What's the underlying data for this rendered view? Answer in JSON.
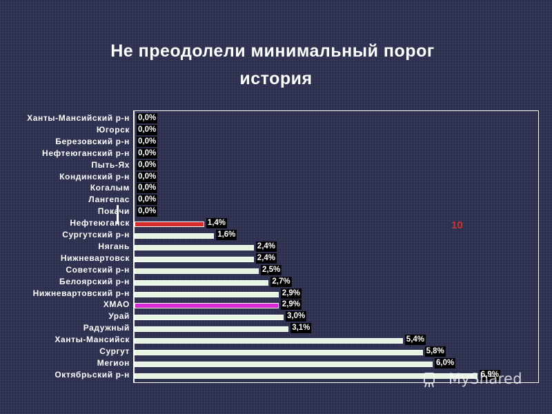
{
  "slide": {
    "title_line1": "Не преодолели минимальный порог",
    "title_line2": "история",
    "annotation": "10",
    "watermark": "MyShared"
  },
  "colors": {
    "background": "#2c2f4e",
    "default_bar": "#e6f5e2",
    "highlight_red": "#d72c2c",
    "highlight_magenta": "#d62ad6",
    "annotation": "#d43030"
  },
  "chart_data": {
    "type": "bar",
    "orientation": "horizontal",
    "categories": [
      "Ханты-Мансийский р-н",
      "Югорск",
      "Березовский р-н",
      "Нефтеюганский р-н",
      "Пыть-Ях",
      "Кондинский р-н",
      "Когалым",
      "Лангепас",
      "Покачи",
      "Нефтеюганск",
      "Сургутский р-н",
      "Нягань",
      "Нижневартовск",
      "Советский р-н",
      "Белоярский р-н",
      "Нижневартовский р-н",
      "ХМАО",
      "Урай",
      "Радужный",
      "Ханты-Мансийск",
      "Сургут",
      "Мегион",
      "Октябрьский р-н"
    ],
    "values": [
      0.0,
      0.0,
      0.0,
      0.0,
      0.0,
      0.0,
      0.0,
      0.0,
      0.0,
      1.4,
      1.6,
      2.4,
      2.4,
      2.5,
      2.7,
      2.9,
      2.9,
      3.0,
      3.1,
      5.4,
      5.8,
      6.0,
      6.9
    ],
    "labels": [
      "0,0%",
      "0,0%",
      "0,0%",
      "0,0%",
      "0,0%",
      "0,0%",
      "0,0%",
      "0,0%",
      "0,0%",
      "1,4%",
      "1,6%",
      "2,4%",
      "2,4%",
      "2,5%",
      "2,7%",
      "2,9%",
      "2,9%",
      "3,0%",
      "3,1%",
      "5,4%",
      "5,8%",
      "6,0%",
      "6,9%"
    ],
    "highlights": {
      "Нефтеюганск": "red",
      "ХМАО": "magenta"
    },
    "xlim": [
      0,
      8
    ],
    "unit": "%",
    "grid": false,
    "legend": "none"
  }
}
